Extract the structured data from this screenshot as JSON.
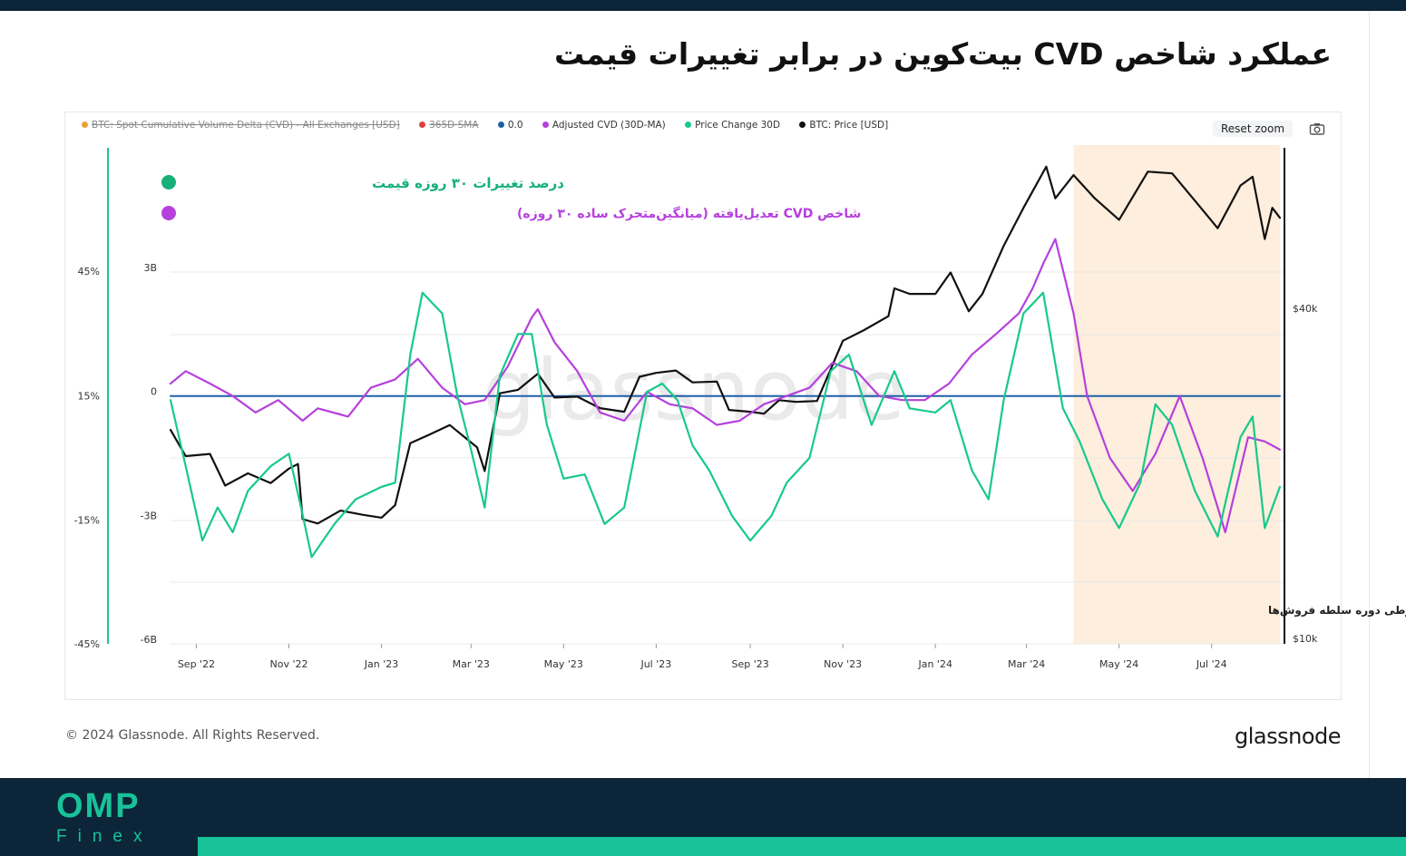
{
  "page": {
    "title": "عملکرد شاخص CVD بیت‌کوین در برابر تغییرات قیمت",
    "copyright": "© 2024 Glassnode. All Rights Reserved.",
    "source_logo": "glassnode",
    "watermark": "glassnode",
    "brand": {
      "name": "OMP",
      "sub": "Finex",
      "color": "#18c39a"
    }
  },
  "toolbar": {
    "reset_zoom": "Reset zoom",
    "camera_icon": "camera-icon"
  },
  "legend": [
    {
      "label": "BTC: Spot Cumulative Volume Delta (CVD) - All Exchanges [USD]",
      "color": "#f0a030",
      "hidden": true
    },
    {
      "label": "365D SMA",
      "color": "#e04040",
      "hidden": true
    },
    {
      "label": "0.0",
      "color": "#1f5fa8",
      "hidden": false
    },
    {
      "label": "Adjusted CVD (30D-MA)",
      "color": "#b640dc",
      "hidden": false
    },
    {
      "label": "Price Change 30D",
      "color": "#18c98a",
      "hidden": false
    },
    {
      "label": "BTC: Price [USD]",
      "color": "#111111",
      "hidden": false
    }
  ],
  "annotations": {
    "price_change": {
      "text": "درصد تغییرات ۳۰ روزه قیمت",
      "color": "#18b07a"
    },
    "adjusted_cvd": {
      "text": "شاخص CVD تعدیل‌یافته (میانگین‌متحرک ساده ۳۰ روزه)",
      "color": "#b640dc"
    },
    "seller_period": {
      "text": "خالص مقادیرطی دوره سلطه فروش‌ها",
      "color": "#222222",
      "band_color": "#fdeedd",
      "from": "2024-04-01",
      "to": "2024-08-15"
    }
  },
  "chart_data": {
    "type": "line",
    "x_ticks": [
      "Sep '22",
      "Nov '22",
      "Jan '23",
      "Mar '23",
      "May '23",
      "Jul '23",
      "Sep '23",
      "Nov '23",
      "Jan '24",
      "Mar '24",
      "May '24",
      "Jul '24"
    ],
    "x_range": [
      "2022-08-15",
      "2024-08-15"
    ],
    "axes": {
      "pct": {
        "ticks": [
          "45%",
          "15%",
          "-15%",
          "-45%"
        ],
        "range": [
          -45,
          45
        ]
      },
      "cvd": {
        "ticks": [
          "3B",
          "0",
          "-3B",
          "-6B"
        ],
        "range": [
          -6,
          3
        ]
      },
      "price": {
        "ticks": [
          "$40k",
          "$10k"
        ],
        "range": [
          10000,
          40000
        ]
      }
    },
    "grid": true,
    "series": [
      {
        "name": "BTC: Price [USD]",
        "color": "#111111",
        "axis": "price",
        "points": [
          [
            "2022-08-15",
            24000
          ],
          [
            "2022-08-25",
            21500
          ],
          [
            "2022-09-10",
            21700
          ],
          [
            "2022-09-20",
            19000
          ],
          [
            "2022-10-05",
            20000
          ],
          [
            "2022-10-20",
            19200
          ],
          [
            "2022-11-01",
            20400
          ],
          [
            "2022-11-07",
            20800
          ],
          [
            "2022-11-10",
            16500
          ],
          [
            "2022-11-20",
            16200
          ],
          [
            "2022-12-05",
            17100
          ],
          [
            "2022-12-20",
            16800
          ],
          [
            "2023-01-01",
            16600
          ],
          [
            "2023-01-10",
            17500
          ],
          [
            "2023-01-20",
            22700
          ],
          [
            "2023-02-01",
            23500
          ],
          [
            "2023-02-15",
            24500
          ],
          [
            "2023-03-05",
            22300
          ],
          [
            "2023-03-10",
            20200
          ],
          [
            "2023-03-20",
            28000
          ],
          [
            "2023-04-01",
            28400
          ],
          [
            "2023-04-14",
            30400
          ],
          [
            "2023-04-25",
            27500
          ],
          [
            "2023-05-10",
            27600
          ],
          [
            "2023-05-25",
            26300
          ],
          [
            "2023-06-10",
            25900
          ],
          [
            "2023-06-20",
            30000
          ],
          [
            "2023-07-01",
            30500
          ],
          [
            "2023-07-14",
            30800
          ],
          [
            "2023-07-25",
            29300
          ],
          [
            "2023-08-10",
            29400
          ],
          [
            "2023-08-18",
            26100
          ],
          [
            "2023-09-01",
            25900
          ],
          [
            "2023-09-10",
            25700
          ],
          [
            "2023-09-20",
            27200
          ],
          [
            "2023-10-01",
            27000
          ],
          [
            "2023-10-15",
            27100
          ],
          [
            "2023-10-23",
            30500
          ],
          [
            "2023-11-01",
            34900
          ],
          [
            "2023-11-15",
            36500
          ],
          [
            "2023-12-01",
            38700
          ],
          [
            "2023-12-05",
            43500
          ],
          [
            "2023-12-15",
            42500
          ],
          [
            "2024-01-01",
            42500
          ],
          [
            "2024-01-11",
            46500
          ],
          [
            "2024-01-23",
            39500
          ],
          [
            "2024-02-01",
            42500
          ],
          [
            "2024-02-15",
            52000
          ],
          [
            "2024-02-28",
            61000
          ],
          [
            "2024-03-14",
            72500
          ],
          [
            "2024-03-20",
            63500
          ],
          [
            "2024-04-01",
            70000
          ],
          [
            "2024-04-15",
            63500
          ],
          [
            "2024-05-01",
            58000
          ],
          [
            "2024-05-20",
            71000
          ],
          [
            "2024-06-05",
            70500
          ],
          [
            "2024-06-25",
            60500
          ],
          [
            "2024-07-05",
            56000
          ],
          [
            "2024-07-20",
            67000
          ],
          [
            "2024-07-28",
            69500
          ],
          [
            "2024-08-05",
            53500
          ],
          [
            "2024-08-10",
            61000
          ],
          [
            "2024-08-15",
            58500
          ]
        ]
      },
      {
        "name": "Price Change 30D",
        "color": "#18c98a",
        "axis": "pct",
        "points": [
          [
            "2022-08-15",
            14
          ],
          [
            "2022-08-25",
            -2
          ],
          [
            "2022-09-05",
            -20
          ],
          [
            "2022-09-15",
            -12
          ],
          [
            "2022-09-25",
            -18
          ],
          [
            "2022-10-05",
            -8
          ],
          [
            "2022-10-20",
            -2
          ],
          [
            "2022-11-01",
            1
          ],
          [
            "2022-11-09",
            -12
          ],
          [
            "2022-11-16",
            -24
          ],
          [
            "2022-12-01",
            -16
          ],
          [
            "2022-12-15",
            -10
          ],
          [
            "2023-01-01",
            -7
          ],
          [
            "2023-01-10",
            -6
          ],
          [
            "2023-01-20",
            25
          ],
          [
            "2023-01-28",
            40
          ],
          [
            "2023-02-10",
            35
          ],
          [
            "2023-02-20",
            15
          ],
          [
            "2023-03-01",
            2
          ],
          [
            "2023-03-10",
            -12
          ],
          [
            "2023-03-20",
            20
          ],
          [
            "2023-04-01",
            30
          ],
          [
            "2023-04-10",
            30
          ],
          [
            "2023-04-20",
            8
          ],
          [
            "2023-05-01",
            -5
          ],
          [
            "2023-05-15",
            -4
          ],
          [
            "2023-05-28",
            -16
          ],
          [
            "2023-06-10",
            -12
          ],
          [
            "2023-06-25",
            16
          ],
          [
            "2023-07-05",
            18
          ],
          [
            "2023-07-15",
            14
          ],
          [
            "2023-07-25",
            3
          ],
          [
            "2023-08-05",
            -3
          ],
          [
            "2023-08-20",
            -14
          ],
          [
            "2023-09-01",
            -20
          ],
          [
            "2023-09-15",
            -14
          ],
          [
            "2023-09-25",
            -6
          ],
          [
            "2023-10-10",
            0
          ],
          [
            "2023-10-24",
            21
          ],
          [
            "2023-11-05",
            25
          ],
          [
            "2023-11-20",
            8
          ],
          [
            "2023-12-05",
            21
          ],
          [
            "2023-12-15",
            12
          ],
          [
            "2024-01-01",
            11
          ],
          [
            "2024-01-11",
            14
          ],
          [
            "2024-01-25",
            -3
          ],
          [
            "2024-02-05",
            -10
          ],
          [
            "2024-02-15",
            14
          ],
          [
            "2024-02-28",
            35
          ],
          [
            "2024-03-12",
            40
          ],
          [
            "2024-03-25",
            12
          ],
          [
            "2024-04-05",
            4
          ],
          [
            "2024-04-20",
            -10
          ],
          [
            "2024-05-01",
            -17
          ],
          [
            "2024-05-15",
            -6
          ],
          [
            "2024-05-25",
            13
          ],
          [
            "2024-06-05",
            8
          ],
          [
            "2024-06-20",
            -8
          ],
          [
            "2024-07-05",
            -19
          ],
          [
            "2024-07-20",
            5
          ],
          [
            "2024-07-28",
            10
          ],
          [
            "2024-08-05",
            -17
          ],
          [
            "2024-08-15",
            -7
          ]
        ]
      },
      {
        "name": "Adjusted CVD (30D-MA)",
        "color": "#b640dc",
        "axis": "cvd",
        "points": [
          [
            "2022-08-15",
            0.3
          ],
          [
            "2022-08-25",
            0.6
          ],
          [
            "2022-09-10",
            0.3
          ],
          [
            "2022-09-25",
            0.0
          ],
          [
            "2022-10-10",
            -0.4
          ],
          [
            "2022-10-25",
            -0.1
          ],
          [
            "2022-11-10",
            -0.6
          ],
          [
            "2022-11-20",
            -0.3
          ],
          [
            "2022-12-10",
            -0.5
          ],
          [
            "2022-12-25",
            0.2
          ],
          [
            "2023-01-10",
            0.4
          ],
          [
            "2023-01-25",
            0.9
          ],
          [
            "2023-02-10",
            0.2
          ],
          [
            "2023-02-25",
            -0.2
          ],
          [
            "2023-03-10",
            -0.1
          ],
          [
            "2023-03-25",
            0.7
          ],
          [
            "2023-04-10",
            1.9
          ],
          [
            "2023-04-14",
            2.1
          ],
          [
            "2023-04-25",
            1.3
          ],
          [
            "2023-05-10",
            0.6
          ],
          [
            "2023-05-25",
            -0.4
          ],
          [
            "2023-06-10",
            -0.6
          ],
          [
            "2023-06-25",
            0.1
          ],
          [
            "2023-07-10",
            -0.2
          ],
          [
            "2023-07-25",
            -0.3
          ],
          [
            "2023-08-10",
            -0.7
          ],
          [
            "2023-08-25",
            -0.6
          ],
          [
            "2023-09-10",
            -0.2
          ],
          [
            "2023-09-25",
            0.0
          ],
          [
            "2023-10-10",
            0.2
          ],
          [
            "2023-10-25",
            0.8
          ],
          [
            "2023-11-10",
            0.6
          ],
          [
            "2023-11-25",
            0.0
          ],
          [
            "2023-12-10",
            -0.1
          ],
          [
            "2023-12-25",
            -0.1
          ],
          [
            "2024-01-10",
            0.3
          ],
          [
            "2024-01-25",
            1.0
          ],
          [
            "2024-02-10",
            1.5
          ],
          [
            "2024-02-25",
            2.0
          ],
          [
            "2024-03-05",
            2.6
          ],
          [
            "2024-03-12",
            3.2
          ],
          [
            "2024-03-20",
            3.8
          ],
          [
            "2024-04-01",
            2.0
          ],
          [
            "2024-04-10",
            0.0
          ],
          [
            "2024-04-25",
            -1.5
          ],
          [
            "2024-05-10",
            -2.3
          ],
          [
            "2024-05-25",
            -1.4
          ],
          [
            "2024-06-10",
            0.0
          ],
          [
            "2024-06-25",
            -1.5
          ],
          [
            "2024-07-10",
            -3.3
          ],
          [
            "2024-07-25",
            -1.0
          ],
          [
            "2024-08-05",
            -1.1
          ],
          [
            "2024-08-15",
            -1.3
          ]
        ]
      },
      {
        "name": "0.0",
        "color": "#1f5fa8",
        "axis": "cvd",
        "points": [
          [
            "2022-08-15",
            0
          ],
          [
            "2024-08-15",
            0
          ]
        ]
      }
    ]
  }
}
